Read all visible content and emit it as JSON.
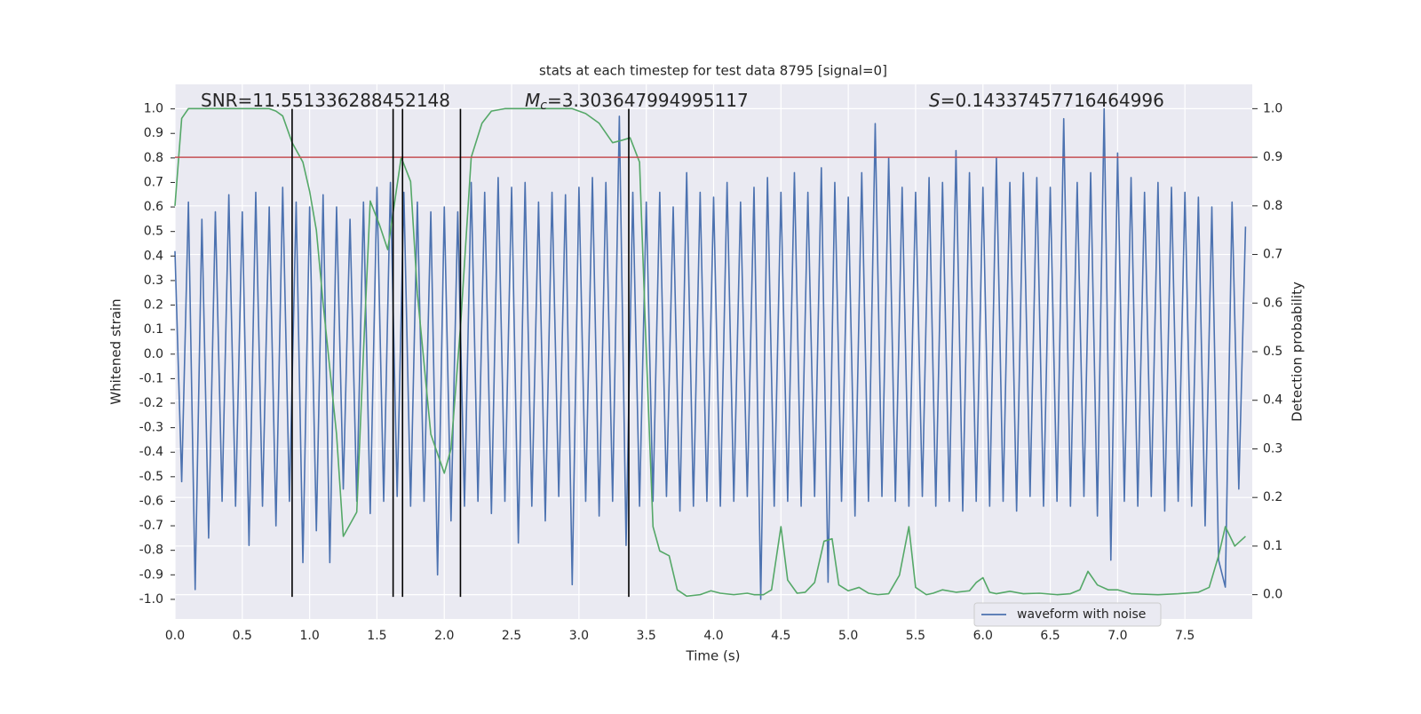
{
  "chart_data": {
    "type": "line",
    "title": "stats at each timestep for test data 8795 [signal=0]",
    "xlabel": "Time (s)",
    "ylabel": "Whitened strain",
    "y2label": "Detection probability",
    "annotations": [
      {
        "text": "SNR=11.551336288452148"
      },
      {
        "symbol": "M",
        "sub": "c",
        "text": "=3.303647994995117"
      },
      {
        "symbol": "S",
        "text": "=0.14337457716464996"
      }
    ],
    "grid": true,
    "legend": "lower right",
    "xlim": [
      0,
      8
    ],
    "ylim": [
      -1.08,
      1.1
    ],
    "y2lim": [
      -0.05,
      1.05
    ],
    "xticks": [
      {
        "value": 0,
        "label": "0.0"
      },
      0.5,
      {
        "value": 1,
        "label": "1.0"
      },
      1.5,
      {
        "value": 2,
        "label": "2.0"
      },
      2.5,
      {
        "value": 3,
        "label": "3.0"
      },
      3.5,
      {
        "value": 4,
        "label": "4.0"
      },
      4.5,
      {
        "value": 5,
        "label": "5.0"
      },
      5.5,
      {
        "value": 6,
        "label": "6.0"
      },
      6.5,
      {
        "value": 7,
        "label": "7.0"
      },
      7.5
    ],
    "yticks": [
      {
        "value": -1,
        "label": "-1.0"
      },
      -0.9,
      -0.8,
      -0.7,
      -0.6,
      -0.5,
      -0.4,
      -0.3,
      -0.2,
      -0.1,
      {
        "value": 0,
        "label": "0.0"
      },
      0.1,
      0.2,
      0.3,
      0.4,
      0.5,
      0.6,
      0.7,
      0.8,
      0.9,
      {
        "value": 1,
        "label": "1.0"
      }
    ],
    "y2ticks": [
      {
        "value": 0,
        "label": "0.0"
      },
      0.1,
      0.2,
      0.3,
      0.4,
      0.5,
      0.6,
      0.7,
      0.8,
      0.9,
      {
        "value": 1,
        "label": "1.0"
      }
    ],
    "series": [
      {
        "name": "waveform with noise",
        "color": "#4c72b0",
        "x": [
          0,
          0.05,
          0.1,
          0.15,
          0.2,
          0.25,
          0.3,
          0.35,
          0.4,
          0.45,
          0.5,
          0.55,
          0.6,
          0.65,
          0.7,
          0.75,
          0.8,
          0.85,
          0.9,
          0.95,
          1,
          1.05,
          1.1,
          1.15,
          1.2,
          1.25,
          1.3,
          1.35,
          1.4,
          1.45,
          1.5,
          1.55,
          1.6,
          1.65,
          1.7,
          1.75,
          1.8,
          1.85,
          1.9,
          1.95,
          2,
          2.05,
          2.1,
          2.15,
          2.2,
          2.25,
          2.3,
          2.35,
          2.4,
          2.45,
          2.5,
          2.55,
          2.6,
          2.65,
          2.7,
          2.75,
          2.8,
          2.85,
          2.9,
          2.95,
          3,
          3.05,
          3.1,
          3.15,
          3.2,
          3.25,
          3.3,
          3.35,
          3.4,
          3.45,
          3.5,
          3.55,
          3.6,
          3.65,
          3.7,
          3.75,
          3.8,
          3.85,
          3.9,
          3.95,
          4,
          4.05,
          4.1,
          4.15,
          4.2,
          4.25,
          4.3,
          4.35,
          4.4,
          4.45,
          4.5,
          4.55,
          4.6,
          4.65,
          4.7,
          4.75,
          4.8,
          4.85,
          4.9,
          4.95,
          5,
          5.05,
          5.1,
          5.15,
          5.2,
          5.25,
          5.3,
          5.35,
          5.4,
          5.45,
          5.5,
          5.55,
          5.6,
          5.65,
          5.7,
          5.75,
          5.8,
          5.85,
          5.9,
          5.95,
          6,
          6.05,
          6.1,
          6.15,
          6.2,
          6.25,
          6.3,
          6.35,
          6.4,
          6.45,
          6.5,
          6.55,
          6.6,
          6.65,
          6.7,
          6.75,
          6.8,
          6.85,
          6.9,
          6.95,
          7,
          7.05,
          7.1,
          7.15,
          7.2,
          7.25,
          7.3,
          7.35,
          7.4,
          7.45,
          7.5,
          7.55,
          7.6,
          7.65,
          7.7,
          7.75,
          7.8,
          7.85,
          7.9,
          7.95
        ],
        "values": [
          0.42,
          -0.52,
          0.62,
          -0.96,
          0.55,
          -0.75,
          0.58,
          -0.6,
          0.65,
          -0.62,
          0.58,
          -0.78,
          0.66,
          -0.62,
          0.6,
          -0.7,
          0.68,
          -0.6,
          0.62,
          -0.85,
          0.6,
          -0.72,
          0.65,
          -0.85,
          0.6,
          -0.55,
          0.55,
          -0.6,
          0.62,
          -0.65,
          0.68,
          -0.6,
          0.7,
          -0.58,
          0.66,
          -0.62,
          0.62,
          -0.6,
          0.58,
          -0.9,
          0.6,
          -0.68,
          0.58,
          -0.62,
          0.7,
          -0.6,
          0.66,
          -0.65,
          0.72,
          -0.6,
          0.68,
          -0.77,
          0.7,
          -0.62,
          0.62,
          -0.68,
          0.66,
          -0.58,
          0.65,
          -0.94,
          0.68,
          -0.6,
          0.72,
          -0.66,
          0.7,
          -0.6,
          0.97,
          -0.78,
          0.66,
          -0.62,
          0.62,
          -0.6,
          0.66,
          -0.58,
          0.6,
          -0.64,
          0.74,
          -0.62,
          0.66,
          -0.6,
          0.64,
          -0.62,
          0.7,
          -0.6,
          0.62,
          -0.58,
          0.68,
          -1.0,
          0.72,
          -0.62,
          0.66,
          -0.6,
          0.74,
          -0.62,
          0.66,
          -0.58,
          0.76,
          -0.93,
          0.7,
          -0.6,
          0.64,
          -0.66,
          0.74,
          -0.6,
          0.94,
          -0.58,
          0.8,
          -0.6,
          0.68,
          -0.62,
          0.66,
          -0.58,
          0.72,
          -0.62,
          0.7,
          -0.6,
          0.83,
          -0.64,
          0.74,
          -0.6,
          0.68,
          -0.62,
          0.8,
          -0.6,
          0.7,
          -0.64,
          0.74,
          -0.58,
          0.72,
          -0.62,
          0.68,
          -0.6,
          0.96,
          -0.62,
          0.7,
          -0.58,
          0.74,
          -0.66,
          1.0,
          -0.84,
          0.82,
          -0.6,
          0.72,
          -0.62,
          0.66,
          -0.58,
          0.7,
          -0.64,
          0.68,
          -0.6,
          0.66,
          -0.62,
          0.64,
          -0.7,
          0.6,
          -0.84,
          -0.95,
          0.62,
          -0.55,
          0.52
        ]
      },
      {
        "color": "#55a868",
        "axis": "y2",
        "x": [
          0,
          0.05,
          0.1,
          0.7,
          0.75,
          0.8,
          0.87,
          0.95,
          1,
          1.05,
          1.1,
          1.2,
          1.25,
          1.35,
          1.4,
          1.45,
          1.52,
          1.58,
          1.68,
          1.75,
          1.8,
          1.9,
          2,
          2.05,
          2.12,
          2.2,
          2.28,
          2.35,
          2.45,
          2.95,
          3.05,
          3.15,
          3.25,
          3.32,
          3.38,
          3.45,
          3.5,
          3.55,
          3.6,
          3.67,
          3.73,
          3.8,
          3.9,
          3.98,
          4.05,
          4.15,
          4.25,
          4.3,
          4.37,
          4.43,
          4.5,
          4.55,
          4.62,
          4.68,
          4.75,
          4.82,
          4.88,
          4.93,
          5,
          5.08,
          5.15,
          5.22,
          5.3,
          5.38,
          5.45,
          5.5,
          5.58,
          5.63,
          5.7,
          5.8,
          5.9,
          5.95,
          6,
          6.05,
          6.1,
          6.2,
          6.3,
          6.42,
          6.55,
          6.65,
          6.72,
          6.78,
          6.85,
          6.93,
          7,
          7.1,
          7.3,
          7.45,
          7.6,
          7.68,
          7.75,
          7.8,
          7.87,
          7.95
        ],
        "values": [
          0.8,
          0.98,
          1.0,
          1.0,
          0.995,
          0.985,
          0.93,
          0.89,
          0.83,
          0.75,
          0.6,
          0.33,
          0.12,
          0.17,
          0.5,
          0.81,
          0.76,
          0.71,
          0.9,
          0.85,
          0.62,
          0.33,
          0.25,
          0.3,
          0.55,
          0.9,
          0.97,
          0.995,
          1.0,
          1.0,
          0.99,
          0.97,
          0.93,
          0.935,
          0.94,
          0.89,
          0.5,
          0.14,
          0.09,
          0.08,
          0.01,
          -0.003,
          0.0,
          0.008,
          0.003,
          0.0,
          0.003,
          0.0,
          0.0,
          0.01,
          0.14,
          0.03,
          0.003,
          0.005,
          0.025,
          0.11,
          0.115,
          0.02,
          0.008,
          0.015,
          0.003,
          0.0,
          0.002,
          0.04,
          0.14,
          0.015,
          0.0,
          0.003,
          0.01,
          0.005,
          0.008,
          0.025,
          0.035,
          0.005,
          0.002,
          0.007,
          0.002,
          0.003,
          0.0,
          0.002,
          0.01,
          0.048,
          0.02,
          0.01,
          0.01,
          0.002,
          0.0,
          0.002,
          0.005,
          0.015,
          0.08,
          0.14,
          0.1,
          0.12
        ]
      }
    ],
    "hlines": [
      {
        "y": 0.9,
        "axis": "y2",
        "color": "#c44e52"
      }
    ],
    "vlines": {
      "x": [
        0.87,
        1.62,
        1.69,
        2.12,
        3.37
      ],
      "ymin": -0.99,
      "ymax": 1.0,
      "color": "#000000"
    }
  }
}
